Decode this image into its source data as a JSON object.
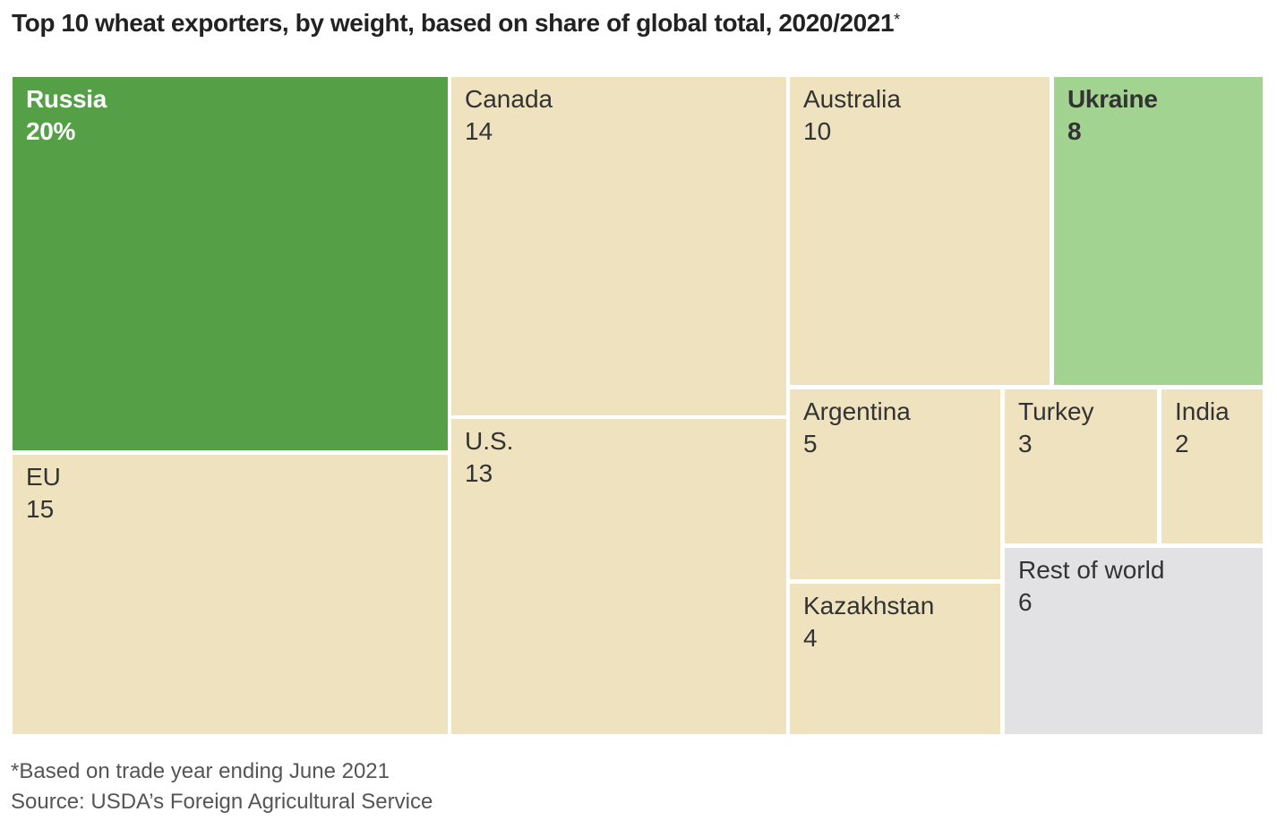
{
  "chart_data": {
    "type": "treemap",
    "title": "Top 10 wheat exporters, by weight, based on share of global total, 2020/2021",
    "title_marker": "*",
    "unit": "%",
    "series": [
      {
        "name": "Russia",
        "value": 20,
        "display": "20%",
        "color": "#55a046",
        "text_color": "#ffffff",
        "highlight": true
      },
      {
        "name": "EU",
        "value": 15,
        "display": "15",
        "color": "#efe2bf",
        "text_color": "#333333",
        "highlight": false
      },
      {
        "name": "Canada",
        "value": 14,
        "display": "14",
        "color": "#efe2bf",
        "text_color": "#333333",
        "highlight": false
      },
      {
        "name": "U.S.",
        "value": 13,
        "display": "13",
        "color": "#efe2bf",
        "text_color": "#333333",
        "highlight": false
      },
      {
        "name": "Australia",
        "value": 10,
        "display": "10",
        "color": "#efe2bf",
        "text_color": "#333333",
        "highlight": false
      },
      {
        "name": "Ukraine",
        "value": 8,
        "display": "8",
        "color": "#a3d391",
        "text_color": "#333333",
        "highlight": true
      },
      {
        "name": "Argentina",
        "value": 5,
        "display": "5",
        "color": "#efe2bf",
        "text_color": "#333333",
        "highlight": false
      },
      {
        "name": "Kazakhstan",
        "value": 4,
        "display": "4",
        "color": "#efe2bf",
        "text_color": "#333333",
        "highlight": false
      },
      {
        "name": "Turkey",
        "value": 3,
        "display": "3",
        "color": "#efe2bf",
        "text_color": "#333333",
        "highlight": false
      },
      {
        "name": "India",
        "value": 2,
        "display": "2",
        "color": "#efe2bf",
        "text_color": "#333333",
        "highlight": false
      },
      {
        "name": "Rest of world",
        "value": 6,
        "display": "6",
        "color": "#e2e2e4",
        "text_color": "#333333",
        "highlight": false
      }
    ]
  },
  "footnotes": {
    "note": "*Based on trade year ending June 2021",
    "source": "Source: USDA’s Foreign Agricultural Service"
  }
}
